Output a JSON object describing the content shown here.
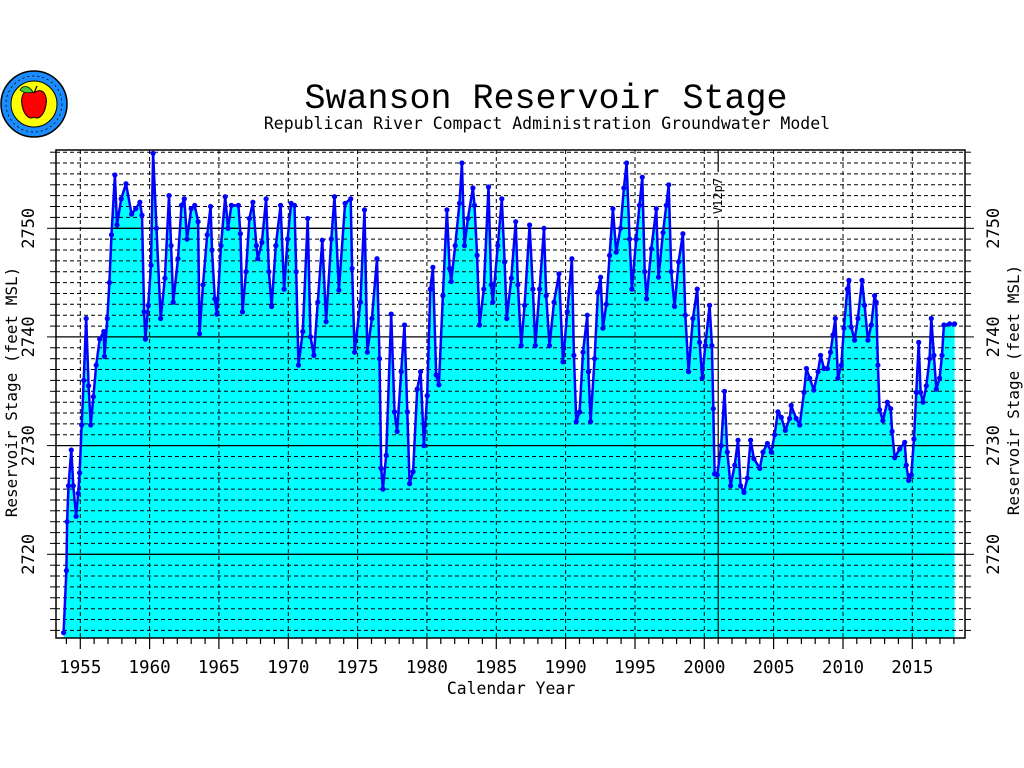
{
  "chart_data": {
    "type": "area",
    "title": "Swanson Reservoir Stage",
    "subtitle": "Republican River Compact Administration Groundwater Model",
    "xlabel": "Calendar Year",
    "ylabel": "Reservoir Stage (feet MSL)",
    "ylabel_right": "Reservoir Stage (feet MSL)",
    "xlim": [
      1953.25,
      2018.8
    ],
    "ylim": [
      2712.3,
      2757.2
    ],
    "x_ticks": [
      1955,
      1960,
      1965,
      1970,
      1975,
      1980,
      1985,
      1990,
      1995,
      2000,
      2005,
      2010,
      2015
    ],
    "x_tick_labels": [
      "1955",
      "1960",
      "1965",
      "1970",
      "1975",
      "1980",
      "1985",
      "1990",
      "1995",
      "2000",
      "2005",
      "2010",
      "2015"
    ],
    "y_ticks": [
      2720,
      2730,
      2740,
      2750
    ],
    "y_tick_labels": [
      "2720",
      "2730",
      "2740",
      "2750"
    ],
    "grid": true,
    "annotation": {
      "text": "V12p7",
      "x": 2001
    },
    "colors": {
      "fill": "#00FFFF",
      "line": "#0000FF",
      "axis": "#000000"
    },
    "series": [
      {
        "name": "Reservoir Stage",
        "x": [
          1953.8,
          1954.0,
          1954.05,
          1954.15,
          1954.35,
          1954.5,
          1954.7,
          1954.85,
          1954.95,
          1955.1,
          1955.25,
          1955.43,
          1955.6,
          1955.75,
          1955.95,
          1956.15,
          1956.4,
          1956.7,
          1956.75,
          1956.95,
          1957.1,
          1957.25,
          1957.5,
          1957.65,
          1957.95,
          1958.3,
          1958.7,
          1959.0,
          1959.3,
          1959.45,
          1959.6,
          1959.7,
          1959.9,
          1960.1,
          1960.25,
          1960.5,
          1960.8,
          1961.1,
          1961.4,
          1961.55,
          1961.7,
          1962.05,
          1962.3,
          1962.5,
          1962.7,
          1963.0,
          1963.25,
          1963.5,
          1963.6,
          1963.85,
          1964.15,
          1964.4,
          1964.5,
          1964.7,
          1964.85,
          1965.15,
          1965.45,
          1965.65,
          1965.9,
          1966.4,
          1966.55,
          1966.7,
          1966.95,
          1967.2,
          1967.45,
          1967.7,
          1967.8,
          1968.1,
          1968.4,
          1968.6,
          1968.8,
          1969.1,
          1969.45,
          1969.7,
          1969.95,
          1970.2,
          1970.45,
          1970.57,
          1970.74,
          1971.05,
          1971.4,
          1971.6,
          1971.85,
          1972.13,
          1972.45,
          1972.73,
          1973.1,
          1973.33,
          1973.65,
          1974.1,
          1974.5,
          1974.6,
          1974.78,
          1975.2,
          1975.5,
          1975.7,
          1976.03,
          1976.4,
          1976.58,
          1976.7,
          1976.82,
          1977.06,
          1977.42,
          1977.66,
          1977.85,
          1978.14,
          1978.38,
          1978.58,
          1978.75,
          1979.0,
          1979.3,
          1979.54,
          1979.78,
          1980.02,
          1980.24,
          1980.43,
          1980.67,
          1980.86,
          1981.15,
          1981.44,
          1981.63,
          1981.75,
          1982.04,
          1982.35,
          1982.52,
          1982.71,
          1982.95,
          1983.31,
          1983.43,
          1983.62,
          1983.79,
          1984.1,
          1984.44,
          1984.63,
          1984.75,
          1985.11,
          1985.4,
          1985.6,
          1985.76,
          1986.08,
          1986.4,
          1986.56,
          1986.8,
          1987.04,
          1987.4,
          1987.64,
          1987.81,
          1988.12,
          1988.44,
          1988.6,
          1988.84,
          1989.16,
          1989.52,
          1989.81,
          1990.12,
          1990.45,
          1990.6,
          1990.77,
          1991.01,
          1991.25,
          1991.56,
          1991.65,
          1991.8,
          1992.09,
          1992.33,
          1992.52,
          1992.69,
          1992.93,
          1993.17,
          1993.41,
          1993.65,
          1993.96,
          1994.2,
          1994.4,
          1994.61,
          1994.78,
          1995.09,
          1995.33,
          1995.53,
          1995.7,
          1995.84,
          1996.18,
          1996.54,
          1996.7,
          1997.02,
          1997.26,
          1997.43,
          1997.62,
          1997.86,
          1998.15,
          1998.46,
          1998.63,
          1998.87,
          1999.18,
          1999.49,
          1999.66,
          1999.85,
          2000.07,
          2000.38,
          2000.55,
          2000.65,
          2000.74,
          2000.93,
          2001.22,
          2001.46,
          2001.66,
          2001.9,
          2002.19,
          2002.43,
          2002.62,
          2002.86,
          2003.1,
          2003.34,
          2003.58,
          2004.0,
          2004.23,
          2004.55,
          2004.83,
          2005.07,
          2005.31,
          2005.55,
          2005.84,
          2006.15,
          2006.27,
          2006.63,
          2006.88,
          2007.19,
          2007.36,
          2007.6,
          2007.9,
          2008.2,
          2008.39,
          2008.63,
          2008.87,
          2009.1,
          2009.28,
          2009.45,
          2009.64,
          2009.88,
          2010.07,
          2010.31,
          2010.43,
          2010.6,
          2010.84,
          2011.08,
          2011.37,
          2011.56,
          2011.8,
          2012.04,
          2012.28,
          2012.4,
          2012.52,
          2012.64,
          2012.88,
          2013.2,
          2013.44,
          2013.54,
          2013.73,
          2014.09,
          2014.45,
          2014.57,
          2014.74,
          2014.93,
          2015.12,
          2015.29,
          2015.46,
          2015.6,
          2015.77,
          2016.01,
          2016.25,
          2016.37,
          2016.56,
          2016.73,
          2016.97,
          2017.14,
          2017.28,
          2017.69,
          2018.05
        ],
        "y": [
          2712.8,
          2718.5,
          2723.0,
          2726.3,
          2729.6,
          2726.3,
          2723.5,
          2725.6,
          2727.5,
          2731.9,
          2736.0,
          2741.7,
          2735.5,
          2731.9,
          2734.5,
          2737.4,
          2739.8,
          2740.5,
          2738.2,
          2741.7,
          2745.0,
          2749.4,
          2754.9,
          2750.3,
          2752.7,
          2754.1,
          2751.3,
          2751.8,
          2752.4,
          2751.2,
          2742.3,
          2739.8,
          2742.9,
          2746.6,
          2756.9,
          2750.0,
          2741.7,
          2745.4,
          2753.0,
          2748.4,
          2743.2,
          2747.2,
          2752.1,
          2752.7,
          2749.0,
          2751.8,
          2752.1,
          2750.6,
          2740.3,
          2744.8,
          2749.4,
          2752.0,
          2748.0,
          2743.5,
          2742.1,
          2748.4,
          2752.9,
          2750.0,
          2752.1,
          2752.1,
          2749.5,
          2742.3,
          2746.0,
          2750.9,
          2752.4,
          2748.4,
          2747.2,
          2748.7,
          2752.7,
          2746.0,
          2742.8,
          2748.4,
          2752.1,
          2744.4,
          2749.0,
          2752.3,
          2752.1,
          2746.0,
          2737.4,
          2740.5,
          2750.9,
          2740.0,
          2738.3,
          2743.2,
          2748.9,
          2741.4,
          2749.0,
          2752.9,
          2744.3,
          2752.3,
          2752.7,
          2746.3,
          2738.6,
          2743.2,
          2751.7,
          2738.6,
          2741.7,
          2747.2,
          2738.0,
          2727.9,
          2726.0,
          2729.1,
          2742.1,
          2733.1,
          2731.3,
          2736.8,
          2741.1,
          2733.1,
          2726.5,
          2727.6,
          2735.2,
          2736.8,
          2730.0,
          2734.6,
          2744.4,
          2746.4,
          2736.5,
          2735.6,
          2743.8,
          2751.7,
          2746.3,
          2745.1,
          2748.4,
          2752.3,
          2756.0,
          2748.4,
          2750.9,
          2753.7,
          2752.1,
          2747.5,
          2741.1,
          2744.4,
          2753.8,
          2744.8,
          2743.2,
          2748.4,
          2752.7,
          2746.9,
          2741.7,
          2745.4,
          2750.6,
          2744.8,
          2739.2,
          2742.9,
          2750.3,
          2744.4,
          2739.2,
          2744.4,
          2750.0,
          2743.8,
          2739.2,
          2743.2,
          2745.8,
          2737.7,
          2742.3,
          2747.2,
          2738.3,
          2732.2,
          2733.1,
          2738.6,
          2742.0,
          2736.8,
          2732.2,
          2738.0,
          2744.1,
          2745.5,
          2740.8,
          2743.0,
          2747.5,
          2751.8,
          2747.8,
          2750.0,
          2753.7,
          2756.0,
          2749.0,
          2744.4,
          2749.0,
          2752.1,
          2754.7,
          2746.0,
          2743.5,
          2748.1,
          2751.8,
          2745.5,
          2749.6,
          2752.1,
          2754.0,
          2746.0,
          2742.8,
          2746.9,
          2749.5,
          2742.0,
          2736.8,
          2741.7,
          2744.4,
          2739.5,
          2736.2,
          2739.2,
          2742.9,
          2739.2,
          2733.4,
          2727.4,
          2727.3,
          2730.0,
          2735.0,
          2729.4,
          2726.3,
          2728.2,
          2730.5,
          2726.3,
          2725.7,
          2727.0,
          2730.5,
          2728.8,
          2727.9,
          2729.4,
          2730.2,
          2729.4,
          2731.0,
          2733.1,
          2732.6,
          2731.4,
          2732.5,
          2733.7,
          2732.5,
          2731.9,
          2734.9,
          2737.1,
          2736.2,
          2735.1,
          2736.8,
          2738.3,
          2737.1,
          2737.1,
          2738.6,
          2740.2,
          2741.7,
          2736.2,
          2737.4,
          2740.8,
          2744.4,
          2745.2,
          2740.9,
          2739.7,
          2741.7,
          2745.2,
          2742.9,
          2739.7,
          2741.1,
          2743.8,
          2743.2,
          2737.4,
          2733.3,
          2732.3,
          2734.0,
          2733.4,
          2731.3,
          2728.9,
          2729.7,
          2730.3,
          2728.2,
          2726.8,
          2727.3,
          2730.6,
          2734.9,
          2739.5,
          2734.9,
          2734.0,
          2735.5,
          2738.0,
          2741.7,
          2738.3,
          2735.2,
          2736.2,
          2738.3,
          2741.1,
          2741.2,
          2741.2
        ]
      }
    ]
  }
}
